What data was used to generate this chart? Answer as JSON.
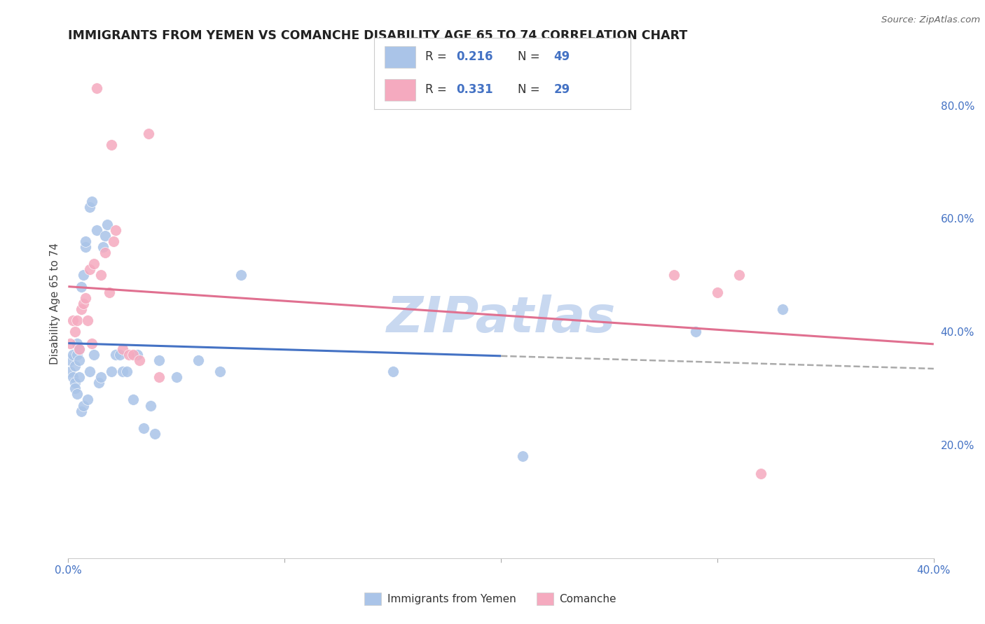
{
  "title": "IMMIGRANTS FROM YEMEN VS COMANCHE DISABILITY AGE 65 TO 74 CORRELATION CHART",
  "source": "Source: ZipAtlas.com",
  "ylabel": "Disability Age 65 to 74",
  "legend_labels": [
    "Immigrants from Yemen",
    "Comanche"
  ],
  "blue_color": "#aac4e8",
  "pink_color": "#f5aabf",
  "blue_line_color": "#4472c4",
  "pink_line_color": "#e07090",
  "dash_color": "#aaaaaa",
  "xlim": [
    0.0,
    0.4
  ],
  "ylim": [
    0.0,
    0.9
  ],
  "right_yticks": [
    0.2,
    0.4,
    0.6,
    0.8
  ],
  "right_yticklabels": [
    "20.0%",
    "40.0%",
    "60.0%",
    "80.0%"
  ],
  "xticks": [
    0.0,
    0.1,
    0.2,
    0.3,
    0.4
  ],
  "xticklabels": [
    "0.0%",
    "",
    "",
    "",
    "40.0%"
  ],
  "grid_color": "#cccccc",
  "background_color": "#ffffff",
  "tick_color": "#4472c4",
  "blue_x": [
    0.001,
    0.001,
    0.002,
    0.002,
    0.003,
    0.003,
    0.003,
    0.004,
    0.004,
    0.004,
    0.005,
    0.005,
    0.005,
    0.006,
    0.006,
    0.007,
    0.007,
    0.008,
    0.008,
    0.009,
    0.01,
    0.01,
    0.011,
    0.012,
    0.013,
    0.014,
    0.015,
    0.016,
    0.017,
    0.018,
    0.02,
    0.022,
    0.024,
    0.025,
    0.027,
    0.03,
    0.032,
    0.035,
    0.038,
    0.04,
    0.042,
    0.05,
    0.06,
    0.07,
    0.08,
    0.15,
    0.21,
    0.29,
    0.33
  ],
  "blue_y": [
    0.35,
    0.33,
    0.36,
    0.32,
    0.34,
    0.31,
    0.3,
    0.38,
    0.36,
    0.29,
    0.35,
    0.37,
    0.32,
    0.48,
    0.26,
    0.5,
    0.27,
    0.55,
    0.56,
    0.28,
    0.33,
    0.62,
    0.63,
    0.36,
    0.58,
    0.31,
    0.32,
    0.55,
    0.57,
    0.59,
    0.33,
    0.36,
    0.36,
    0.33,
    0.33,
    0.28,
    0.36,
    0.23,
    0.27,
    0.22,
    0.35,
    0.32,
    0.35,
    0.33,
    0.5,
    0.33,
    0.18,
    0.4,
    0.44
  ],
  "pink_x": [
    0.001,
    0.002,
    0.003,
    0.004,
    0.005,
    0.006,
    0.007,
    0.008,
    0.009,
    0.01,
    0.011,
    0.012,
    0.013,
    0.015,
    0.017,
    0.019,
    0.02,
    0.021,
    0.022,
    0.025,
    0.028,
    0.03,
    0.033,
    0.037,
    0.042,
    0.28,
    0.3,
    0.31,
    0.32
  ],
  "pink_y": [
    0.38,
    0.42,
    0.4,
    0.42,
    0.37,
    0.44,
    0.45,
    0.46,
    0.42,
    0.51,
    0.38,
    0.52,
    0.83,
    0.5,
    0.54,
    0.47,
    0.73,
    0.56,
    0.58,
    0.37,
    0.36,
    0.36,
    0.35,
    0.75,
    0.32,
    0.5,
    0.47,
    0.5,
    0.15
  ],
  "watermark": "ZIPatlas",
  "watermark_color": "#c8d8f0",
  "watermark_fontsize": 52,
  "legend_r1": "R = 0.216",
  "legend_n1": "N = 49",
  "legend_r2": "R = 0.331",
  "legend_n2": "N = 29"
}
